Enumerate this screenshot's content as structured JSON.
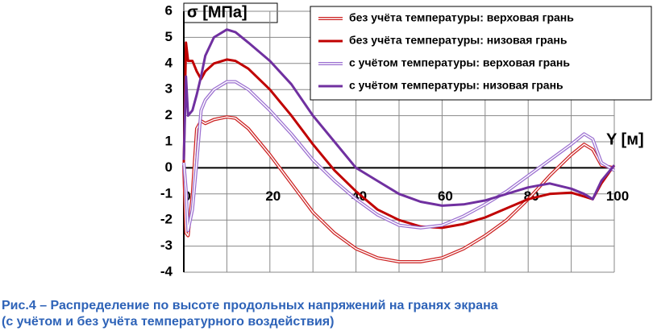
{
  "chart_data": {
    "type": "line",
    "y_label": "σ [МПа]",
    "x_label": "Y [м]",
    "caption": [
      "Рис.4 – Распределение по высоте продольных напряжений на гранях экрана",
      "(с учётом и без учёта температурного воздействия)"
    ],
    "x": [
      0,
      0.5,
      1,
      2,
      3,
      4,
      5,
      7,
      10,
      12,
      15,
      20,
      25,
      30,
      35,
      40,
      45,
      50,
      55,
      60,
      65,
      70,
      75,
      80,
      85,
      90,
      93,
      95,
      97,
      100
    ],
    "series": [
      {
        "name": "без учёта температуры: верховая грань",
        "color": "#cc2222",
        "style": "double",
        "values": [
          0.1,
          -2.5,
          -2.6,
          -1.0,
          1.5,
          1.8,
          1.7,
          1.85,
          1.95,
          1.9,
          1.5,
          0.5,
          -0.6,
          -1.7,
          -2.5,
          -3.1,
          -3.45,
          -3.6,
          -3.6,
          -3.45,
          -3.1,
          -2.6,
          -2.0,
          -1.2,
          -0.3,
          0.5,
          0.9,
          0.7,
          0.1,
          0
        ]
      },
      {
        "name": "без учёта температуры: низовая грань",
        "color": "#c00000",
        "style": "solid",
        "values": [
          0.2,
          4.8,
          4.1,
          4.1,
          3.7,
          3.4,
          3.7,
          4.0,
          4.15,
          4.1,
          3.8,
          3.0,
          2.0,
          0.9,
          -0.1,
          -0.9,
          -1.6,
          -2.0,
          -2.25,
          -2.3,
          -2.15,
          -1.9,
          -1.55,
          -1.2,
          -1.0,
          -0.95,
          -1.1,
          -1.2,
          -0.6,
          0.1
        ]
      },
      {
        "name": "с учётом температуры: верховая грань",
        "color": "#9b6fd0",
        "style": "double",
        "values": [
          0.2,
          -0.8,
          -2.4,
          -1.6,
          0.2,
          2.2,
          2.6,
          3.0,
          3.3,
          3.3,
          3.0,
          2.2,
          1.3,
          0.3,
          -0.5,
          -1.2,
          -1.8,
          -2.2,
          -2.3,
          -2.2,
          -1.85,
          -1.4,
          -0.9,
          -0.3,
          0.3,
          0.9,
          1.3,
          1.1,
          0.2,
          -0.1
        ]
      },
      {
        "name": "с учётом температуры: низовая грань",
        "color": "#7030a0",
        "style": "solid",
        "values": [
          0.3,
          3.5,
          2.0,
          2.2,
          2.8,
          3.5,
          4.3,
          5.0,
          5.3,
          5.2,
          4.8,
          4.1,
          3.2,
          2.0,
          1.0,
          0.0,
          -0.5,
          -1.0,
          -1.3,
          -1.45,
          -1.4,
          -1.25,
          -1.0,
          -0.75,
          -0.6,
          -0.8,
          -1.0,
          -1.2,
          -0.5,
          0.1
        ]
      }
    ],
    "xlim": [
      0,
      100
    ],
    "xticks": [
      0,
      20,
      40,
      60,
      80,
      100
    ],
    "xminor_ticks": [
      10,
      30,
      50,
      70,
      90
    ],
    "ylim": [
      -4,
      6
    ],
    "yticks": [
      -4,
      -3,
      -2,
      -1,
      0,
      1,
      2,
      3,
      4,
      5,
      6
    ],
    "grid": true,
    "legend": "upper right"
  }
}
